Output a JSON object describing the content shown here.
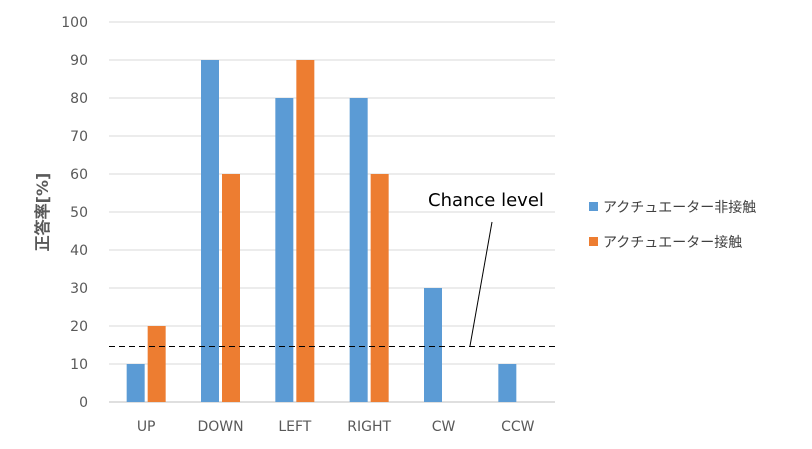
{
  "chart_data": {
    "type": "bar",
    "title": "",
    "xlabel": "",
    "ylabel": "正答率[%]",
    "ylim": [
      0,
      100
    ],
    "yticks": [
      0,
      10,
      20,
      30,
      40,
      50,
      60,
      70,
      80,
      90,
      100
    ],
    "grid": true,
    "legend_position": "right",
    "categories": [
      "UP",
      "DOWN",
      "LEFT",
      "RIGHT",
      "CW",
      "CCW"
    ],
    "series": [
      {
        "name": "アクチュエーター非接触",
        "color": "#5B9BD5",
        "values": [
          10,
          90,
          80,
          80,
          30,
          10
        ]
      },
      {
        "name": "アクチュエーター接触",
        "color": "#ED7D31",
        "values": [
          20,
          60,
          90,
          60,
          0,
          0
        ]
      }
    ],
    "reference_line": {
      "label": "Chance level",
      "value": 14.6,
      "style": "dashed"
    }
  }
}
